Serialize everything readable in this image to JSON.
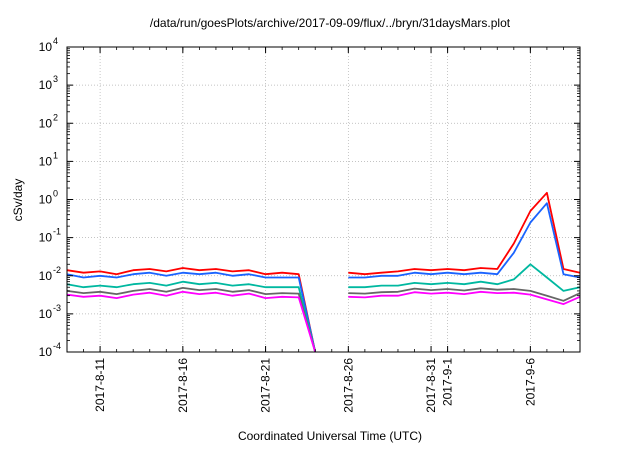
{
  "chart_data": {
    "type": "line",
    "title": "/data/run/goesPlots/archive/2017-09-09/flux/../bryn/31daysMars.plot",
    "xlabel": "Coordinated Universal Time (UTC)",
    "ylabel": "cSv/day",
    "y_scale": "log",
    "ylim": [
      0.0001,
      10000
    ],
    "xlim": [
      "2017-08-09",
      "2017-09-09"
    ],
    "grid": true,
    "legend": "none",
    "y_ticks": [
      {
        "value": 0.0001,
        "base": "10",
        "exp": "-4"
      },
      {
        "value": 0.001,
        "base": "10",
        "exp": "-3"
      },
      {
        "value": 0.01,
        "base": "10",
        "exp": "-2"
      },
      {
        "value": 0.1,
        "base": "10",
        "exp": "-1"
      },
      {
        "value": 1,
        "base": "10",
        "exp": "0"
      },
      {
        "value": 10,
        "base": "10",
        "exp": "1"
      },
      {
        "value": 100,
        "base": "10",
        "exp": "2"
      },
      {
        "value": 1000,
        "base": "10",
        "exp": "3"
      },
      {
        "value": 10000,
        "base": "10",
        "exp": "4"
      }
    ],
    "x_ticks": [
      {
        "date": "2017-08-11",
        "label": "2017-8-11"
      },
      {
        "date": "2017-08-16",
        "label": "2017-8-16"
      },
      {
        "date": "2017-08-21",
        "label": "2017-8-21"
      },
      {
        "date": "2017-08-26",
        "label": "2017-8-26"
      },
      {
        "date": "2017-08-31",
        "label": "2017-8-31"
      },
      {
        "date": "2017-09-01",
        "label": "2017-9-1"
      },
      {
        "date": "2017-09-06",
        "label": "2017-9-6"
      }
    ],
    "x": [
      "2017-08-09",
      "2017-08-10",
      "2017-08-11",
      "2017-08-12",
      "2017-08-13",
      "2017-08-14",
      "2017-08-15",
      "2017-08-16",
      "2017-08-17",
      "2017-08-18",
      "2017-08-19",
      "2017-08-20",
      "2017-08-21",
      "2017-08-22",
      "2017-08-23",
      "2017-08-24",
      "2017-08-25",
      "2017-08-26",
      "2017-08-27",
      "2017-08-28",
      "2017-08-29",
      "2017-08-30",
      "2017-08-31",
      "2017-09-01",
      "2017-09-02",
      "2017-09-03",
      "2017-09-04",
      "2017-09-05",
      "2017-09-06",
      "2017-09-07",
      "2017-09-08",
      "2017-09-09"
    ],
    "series": [
      {
        "color": "#ff0000",
        "values": [
          0.014,
          0.012,
          0.013,
          0.011,
          0.014,
          0.015,
          0.013,
          0.016,
          0.014,
          0.015,
          0.013,
          0.014,
          0.011,
          0.012,
          0.011,
          0.0001,
          null,
          0.012,
          0.011,
          0.012,
          0.013,
          0.015,
          0.014,
          0.015,
          0.014,
          0.016,
          0.015,
          0.07,
          0.5,
          1.5,
          0.015,
          0.012
        ]
      },
      {
        "color": "#1a63ff",
        "values": [
          0.011,
          0.009,
          0.01,
          0.009,
          0.011,
          0.012,
          0.01,
          0.012,
          0.011,
          0.012,
          0.01,
          0.011,
          0.009,
          0.009,
          0.009,
          0.0001,
          null,
          0.009,
          0.009,
          0.01,
          0.01,
          0.012,
          0.011,
          0.012,
          0.011,
          0.012,
          0.011,
          0.04,
          0.25,
          0.8,
          0.011,
          0.009
        ]
      },
      {
        "color": "#00b8a0",
        "values": [
          0.006,
          0.005,
          0.0055,
          0.005,
          0.006,
          0.0065,
          0.0055,
          0.007,
          0.006,
          0.0065,
          0.0055,
          0.006,
          0.005,
          0.005,
          0.005,
          0.0001,
          null,
          0.005,
          0.005,
          0.0055,
          0.0055,
          0.0065,
          0.006,
          0.0065,
          0.006,
          0.007,
          0.006,
          0.008,
          0.02,
          0.009,
          0.004,
          0.005
        ]
      },
      {
        "color": "#666666",
        "values": [
          0.004,
          0.0035,
          0.0038,
          0.0033,
          0.004,
          0.0045,
          0.0038,
          0.0048,
          0.0042,
          0.0045,
          0.0038,
          0.0042,
          0.0033,
          0.0035,
          0.0034,
          0.0001,
          null,
          0.0035,
          0.0034,
          0.0037,
          0.0038,
          0.0046,
          0.0042,
          0.0045,
          0.0041,
          0.0047,
          0.0043,
          0.0045,
          0.004,
          0.003,
          0.0022,
          0.0035
        ]
      },
      {
        "color": "#ff00ff",
        "values": [
          0.0032,
          0.0028,
          0.003,
          0.0026,
          0.0032,
          0.0036,
          0.003,
          0.0038,
          0.0033,
          0.0036,
          0.003,
          0.0034,
          0.0026,
          0.0028,
          0.0027,
          0.0001,
          null,
          0.0028,
          0.0027,
          0.003,
          0.003,
          0.0037,
          0.0034,
          0.0036,
          0.0033,
          0.0038,
          0.0035,
          0.0036,
          0.0032,
          0.0024,
          0.0018,
          0.0028
        ]
      }
    ]
  }
}
